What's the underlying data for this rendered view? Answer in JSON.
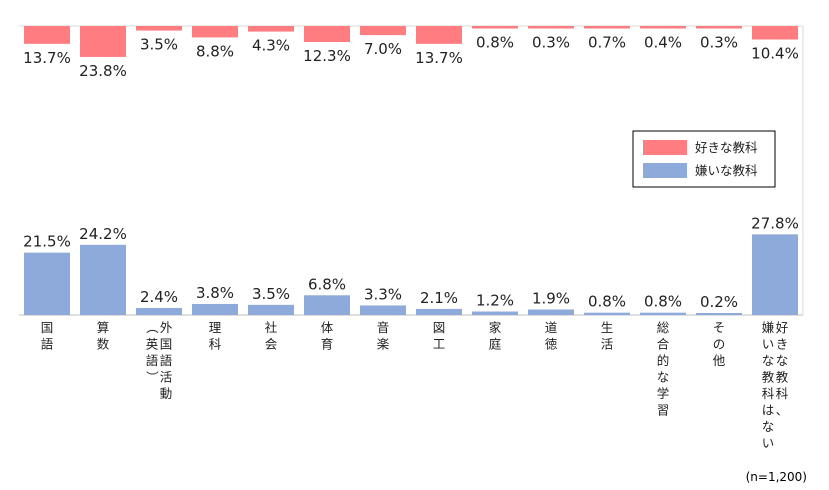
{
  "chart_data": {
    "type": "bar",
    "title": "",
    "xlabel": "",
    "ylabel": "",
    "grid": false,
    "legend_position": "center-right",
    "categories": [
      "国語",
      "算数",
      "外国語活動（英語）",
      "理科",
      "社会",
      "体育",
      "音楽",
      "図工",
      "家庭",
      "道徳",
      "生活",
      "総合的な学習",
      "その他",
      "好きな教科、嫌いな教科はない"
    ],
    "category_label_columns": [
      [
        "国語"
      ],
      [
        "算数"
      ],
      [
        "（英語）",
        "外国語活動"
      ],
      [
        "理科"
      ],
      [
        "社会"
      ],
      [
        "体育"
      ],
      [
        "音楽"
      ],
      [
        "図工"
      ],
      [
        "家庭"
      ],
      [
        "道徳"
      ],
      [
        "生活"
      ],
      [
        "総合的な学習"
      ],
      [
        "その他"
      ],
      [
        "嫌いな教科はない",
        "好きな教科、"
      ]
    ],
    "series": [
      {
        "name": "好きな教科",
        "color": "#ff7c80",
        "values": [
          13.7,
          23.8,
          3.5,
          8.8,
          4.3,
          12.3,
          7.0,
          13.7,
          0.8,
          0.3,
          0.7,
          0.4,
          0.3,
          10.4
        ],
        "labels": [
          "13.7%",
          "23.8%",
          "3.5%",
          "8.8%",
          "4.3%",
          "12.3%",
          "7.0%",
          "13.7%",
          "0.8%",
          "0.3%",
          "0.7%",
          "0.4%",
          "0.3%",
          "10.4%"
        ]
      },
      {
        "name": "嫌いな教科",
        "color": "#8eaadb",
        "values": [
          21.5,
          24.2,
          2.4,
          3.8,
          3.5,
          6.8,
          3.3,
          2.1,
          1.2,
          1.9,
          0.8,
          0.8,
          0.2,
          27.8
        ],
        "labels": [
          "21.5%",
          "24.2%",
          "2.4%",
          "3.8%",
          "3.5%",
          "6.8%",
          "3.3%",
          "2.1%",
          "1.2%",
          "1.9%",
          "0.8%",
          "0.8%",
          "0.2%",
          "27.8%"
        ]
      }
    ],
    "note": "(n=1,200)"
  }
}
